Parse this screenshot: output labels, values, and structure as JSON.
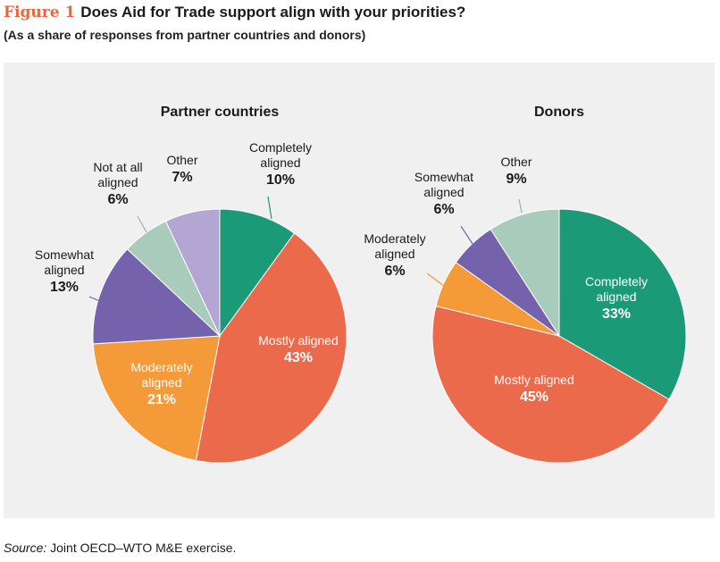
{
  "figure": {
    "number": "Figure 1",
    "title": "Does Aid for Trade support align with your priorities?",
    "subtitle": "(As a share of responses from partner countries and donors)"
  },
  "source": {
    "label": "Source:",
    "text": "Joint OECD–WTO M&E exercise."
  },
  "colors": {
    "panel_bg": "#f0f0f0",
    "completely": "#1b9a77",
    "mostly": "#ec6a4c",
    "moderately": "#f49a38",
    "somewhat": "#7462ac",
    "not_at_all": "#a9cbbb",
    "other_partner": "#b3a6d4",
    "other_donor": "#a9cbbb"
  },
  "chart_data": [
    {
      "type": "pie",
      "title": "Partner countries",
      "slices": [
        {
          "label": "Completely aligned",
          "lines": [
            "Completely",
            "aligned"
          ],
          "value": 10,
          "value_label": "10%",
          "color": "#1b9a77"
        },
        {
          "label": "Mostly aligned",
          "lines": [
            "Mostly aligned"
          ],
          "value": 43,
          "value_label": "43%",
          "color": "#ec6a4c"
        },
        {
          "label": "Moderately aligned",
          "lines": [
            "Moderately",
            "aligned"
          ],
          "value": 21,
          "value_label": "21%",
          "color": "#f49a38"
        },
        {
          "label": "Somewhat aligned",
          "lines": [
            "Somewhat",
            "aligned"
          ],
          "value": 13,
          "value_label": "13%",
          "color": "#7462ac"
        },
        {
          "label": "Not at all aligned",
          "lines": [
            "Not at all",
            "aligned"
          ],
          "value": 6,
          "value_label": "6%",
          "color": "#a9cbbb"
        },
        {
          "label": "Other",
          "lines": [
            "Other"
          ],
          "value": 7,
          "value_label": "7%",
          "color": "#b3a6d4"
        }
      ]
    },
    {
      "type": "pie",
      "title": "Donors",
      "slices": [
        {
          "label": "Completely aligned",
          "lines": [
            "Completely",
            "aligned"
          ],
          "value": 33,
          "value_label": "33%",
          "color": "#1b9a77"
        },
        {
          "label": "Mostly aligned",
          "lines": [
            "Mostly aligned"
          ],
          "value": 45,
          "value_label": "45%",
          "color": "#ec6a4c"
        },
        {
          "label": "Moderately aligned",
          "lines": [
            "Moderately",
            "aligned"
          ],
          "value": 6,
          "value_label": "6%",
          "color": "#f49a38"
        },
        {
          "label": "Somewhat aligned",
          "lines": [
            "Somewhat",
            "aligned"
          ],
          "value": 6,
          "value_label": "6%",
          "color": "#7462ac"
        },
        {
          "label": "Other",
          "lines": [
            "Other"
          ],
          "value": 9,
          "value_label": "9%",
          "color": "#a9cbbb"
        }
      ]
    }
  ]
}
